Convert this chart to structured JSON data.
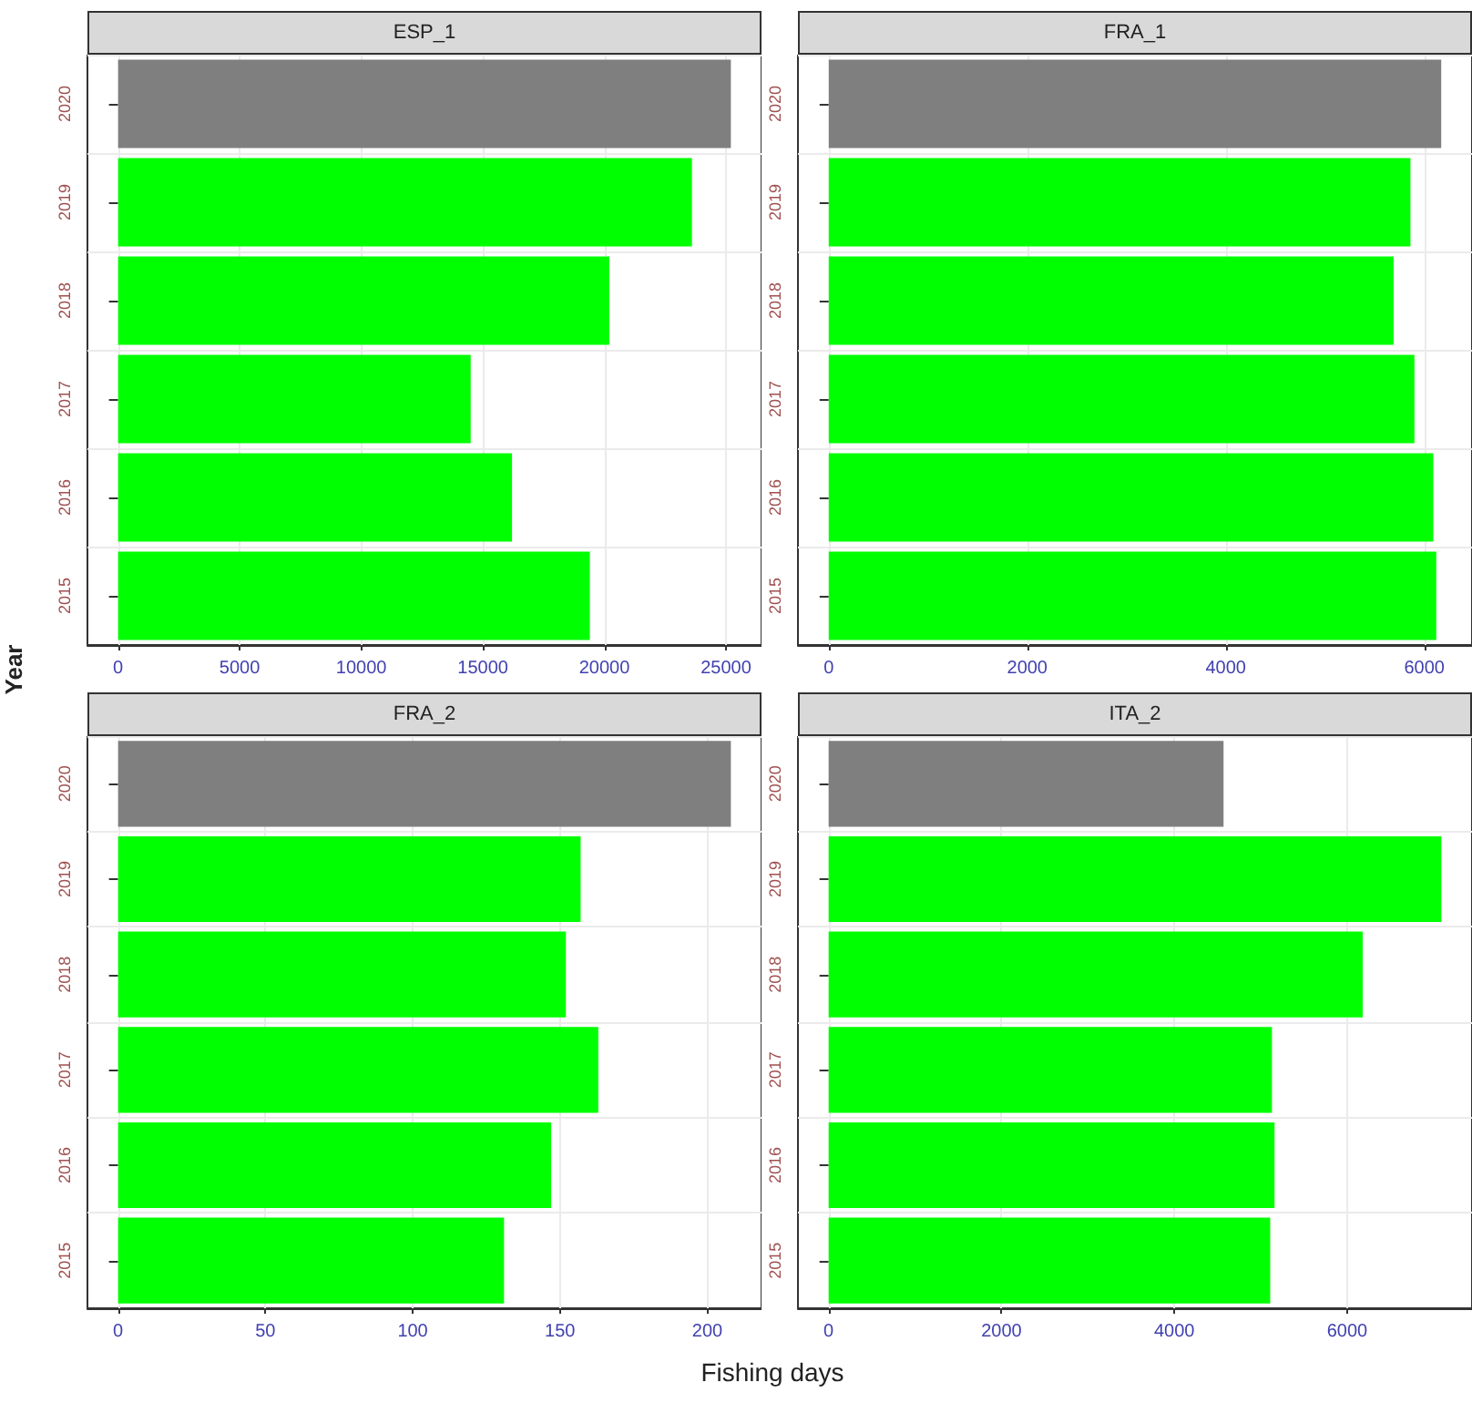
{
  "chart_data": [
    {
      "type": "bar",
      "orientation": "horizontal",
      "title": "ESP_1",
      "ylabel": "Year",
      "categories": [
        "2020",
        "2019",
        "2018",
        "2017",
        "2016",
        "2015"
      ],
      "values": [
        25200,
        23600,
        20200,
        14500,
        16200,
        19400
      ],
      "colors": [
        "#7f7f7f",
        "#00ff00",
        "#00ff00",
        "#00ff00",
        "#00ff00",
        "#00ff00"
      ],
      "xlim": [
        -1260,
        26460
      ],
      "xticks": [
        0,
        5000,
        10000,
        15000,
        20000,
        25000
      ],
      "grid": true
    },
    {
      "type": "bar",
      "orientation": "horizontal",
      "title": "FRA_1",
      "categories": [
        "2020",
        "2019",
        "2018",
        "2017",
        "2016",
        "2015"
      ],
      "values": [
        6170,
        5860,
        5690,
        5900,
        6090,
        6120
      ],
      "colors": [
        "#7f7f7f",
        "#00ff00",
        "#00ff00",
        "#00ff00",
        "#00ff00",
        "#00ff00"
      ],
      "xlim": [
        -310,
        6480
      ],
      "xticks": [
        0,
        2000,
        4000,
        6000
      ],
      "grid": true
    },
    {
      "type": "bar",
      "orientation": "horizontal",
      "title": "FRA_2",
      "xlabel": "Fishing days",
      "categories": [
        "2020",
        "2019",
        "2018",
        "2017",
        "2016",
        "2015"
      ],
      "values": [
        208,
        157,
        152,
        163,
        147,
        131
      ],
      "colors": [
        "#7f7f7f",
        "#00ff00",
        "#00ff00",
        "#00ff00",
        "#00ff00",
        "#00ff00"
      ],
      "xlim": [
        -10.4,
        218.4
      ],
      "xticks": [
        0,
        50,
        100,
        150,
        200
      ],
      "grid": true
    },
    {
      "type": "bar",
      "orientation": "horizontal",
      "title": "ITA_2",
      "categories": [
        "2020",
        "2019",
        "2018",
        "2017",
        "2016",
        "2015"
      ],
      "values": [
        4570,
        7090,
        6180,
        5130,
        5160,
        5110
      ],
      "colors": [
        "#7f7f7f",
        "#00ff00",
        "#00ff00",
        "#00ff00",
        "#00ff00",
        "#00ff00"
      ],
      "xlim": [
        -355,
        7445
      ],
      "xticks": [
        0,
        2000,
        4000,
        6000
      ],
      "grid": true
    }
  ]
}
